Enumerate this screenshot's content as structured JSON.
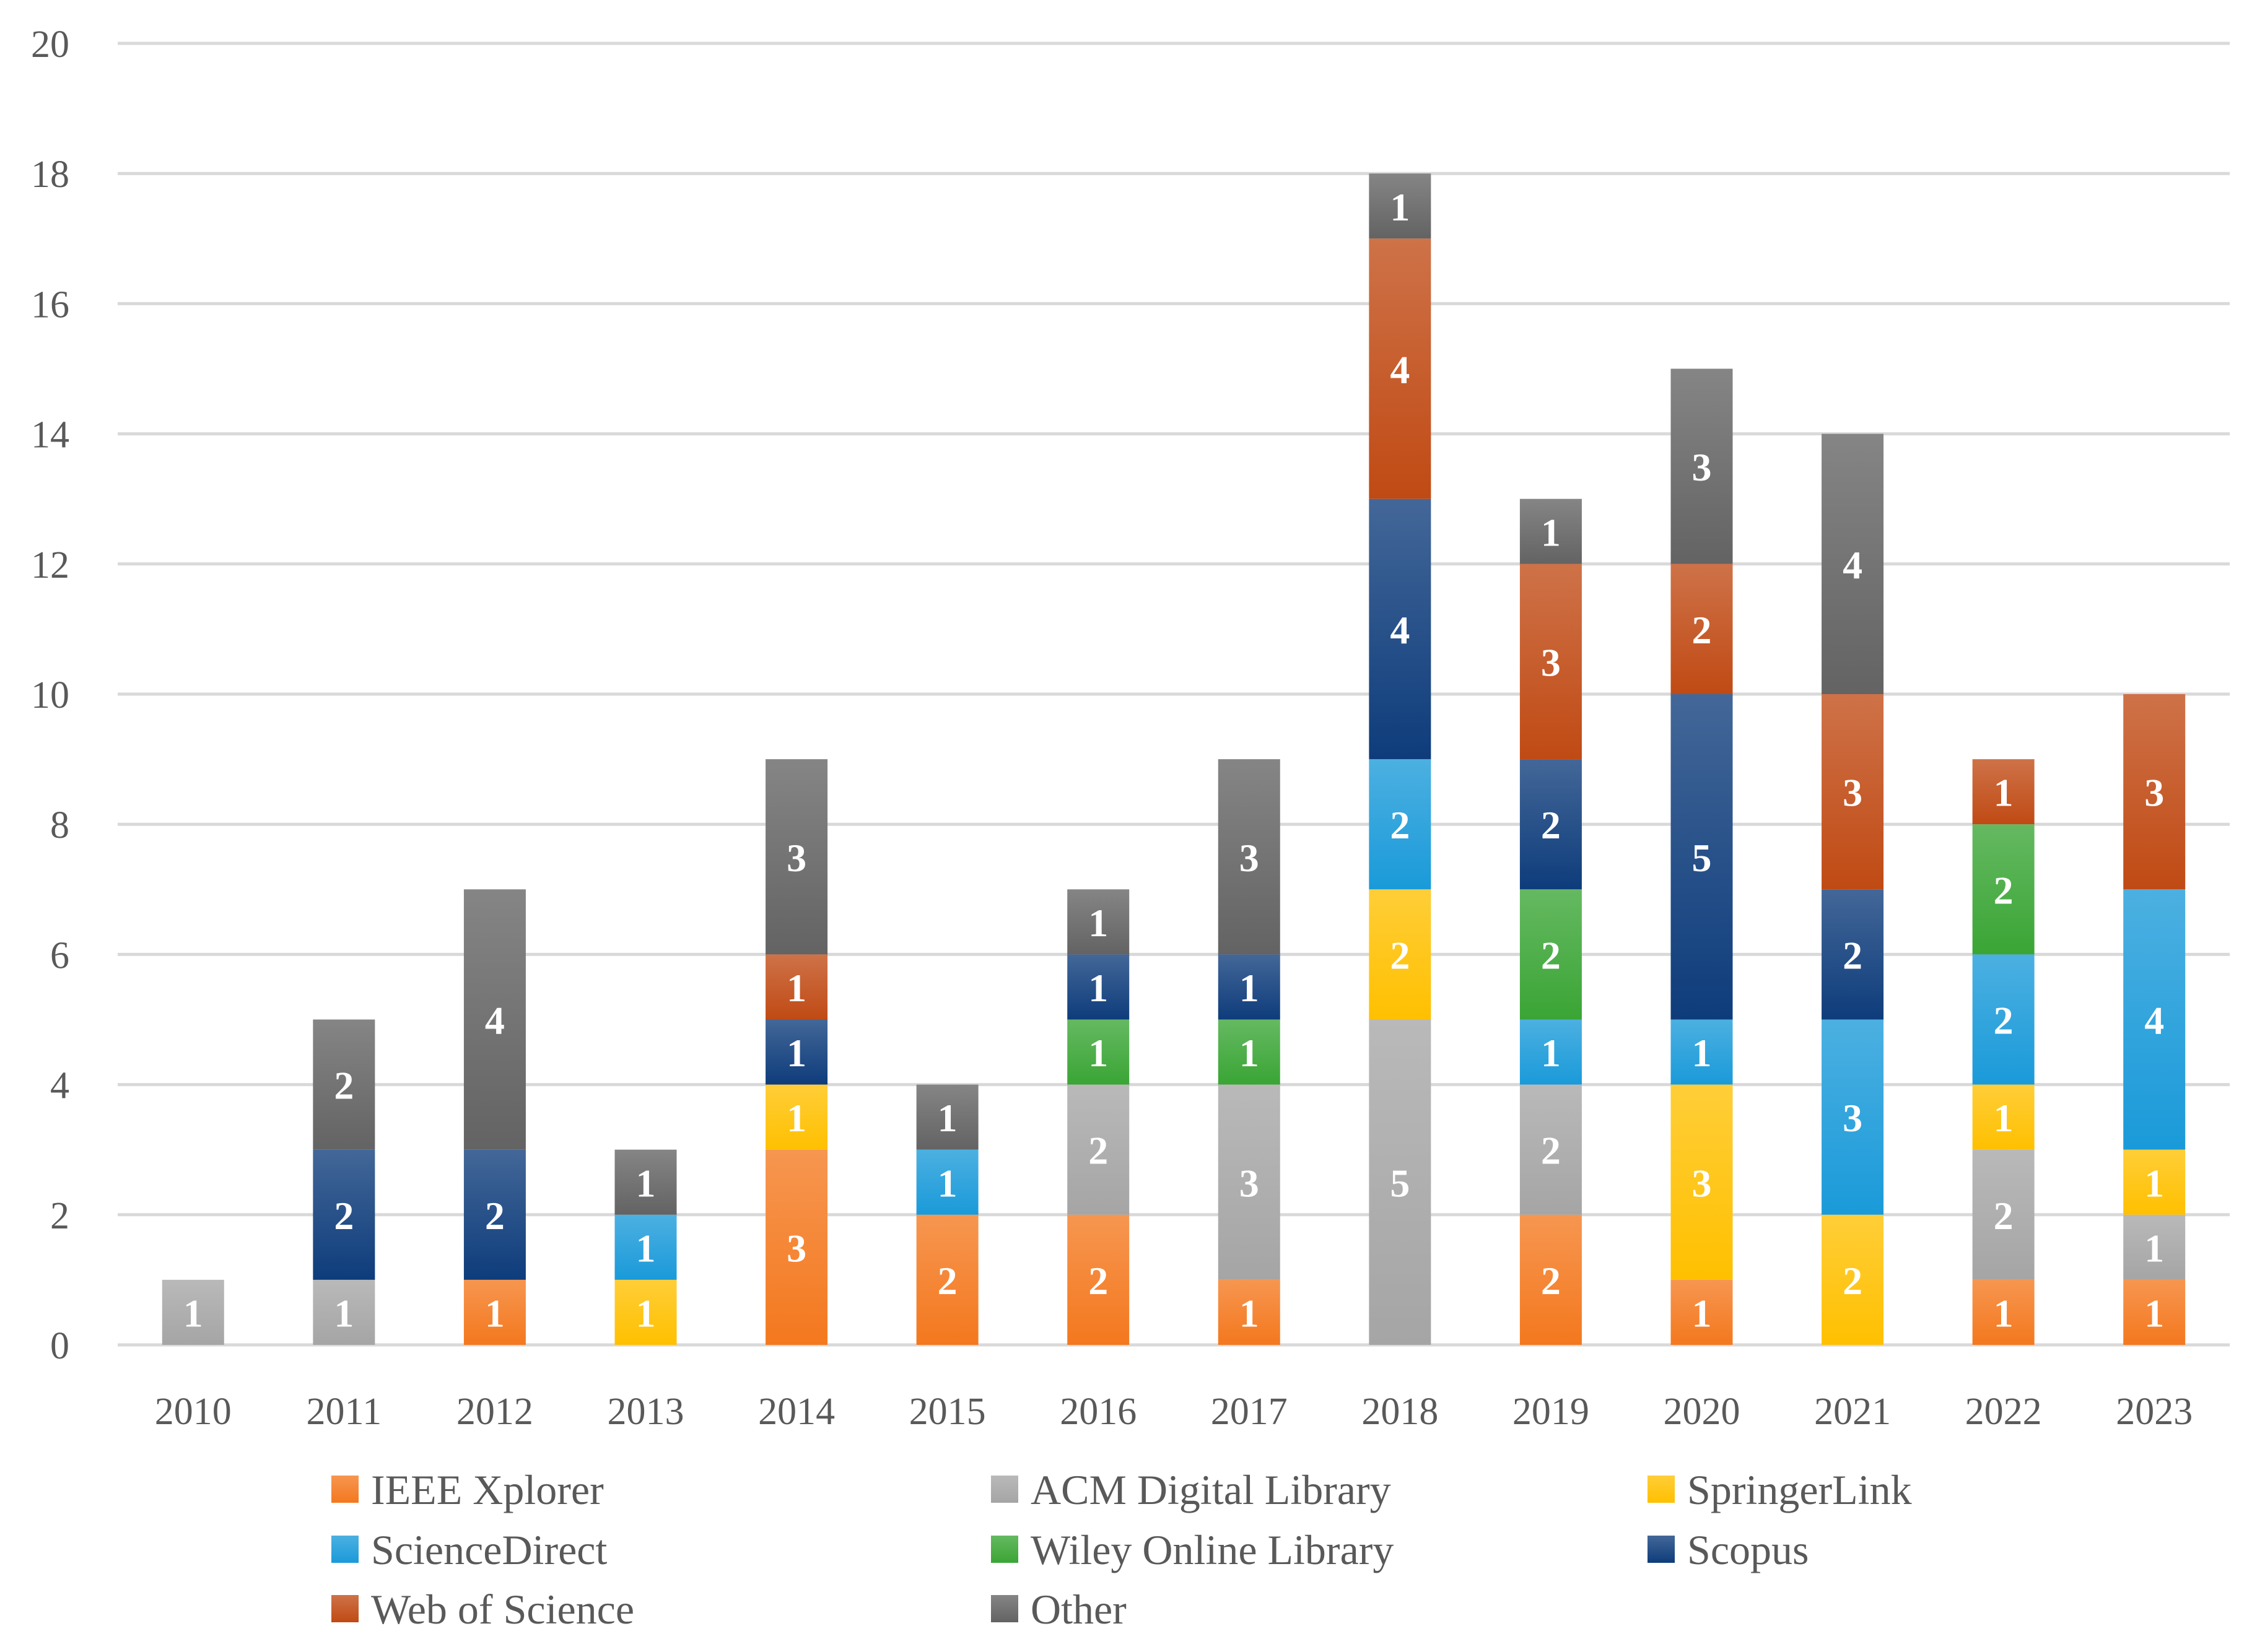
{
  "chart_data": {
    "type": "bar",
    "stacked": true,
    "title": "",
    "xlabel": "",
    "ylabel": "",
    "ylim": [
      0,
      20
    ],
    "yticks": [
      0,
      2,
      4,
      6,
      8,
      10,
      12,
      14,
      16,
      18,
      20
    ],
    "grid": true,
    "legend_position": "bottom",
    "categories": [
      "2010",
      "2011",
      "2012",
      "2013",
      "2014",
      "2015",
      "2016",
      "2017",
      "2018",
      "2019",
      "2020",
      "2021",
      "2022",
      "2023"
    ],
    "series": [
      {
        "name": "IEEE Xplorer",
        "color": "#f4781e",
        "values": [
          0,
          0,
          1,
          0,
          3,
          2,
          2,
          1,
          0,
          2,
          1,
          0,
          1,
          1
        ]
      },
      {
        "name": "ACM Digital Library",
        "color": "#a5a5a5",
        "values": [
          1,
          1,
          0,
          0,
          0,
          0,
          2,
          3,
          5,
          2,
          0,
          0,
          2,
          1
        ]
      },
      {
        "name": "SpringerLink",
        "color": "#ffc000",
        "values": [
          0,
          0,
          0,
          1,
          1,
          0,
          0,
          0,
          2,
          0,
          3,
          2,
          1,
          1
        ]
      },
      {
        "name": "ScienceDirect",
        "color": "#1a9ad9",
        "values": [
          0,
          0,
          0,
          1,
          0,
          1,
          0,
          0,
          2,
          1,
          1,
          3,
          2,
          4
        ]
      },
      {
        "name": "Wiley Online Library",
        "color": "#3aa535",
        "values": [
          0,
          0,
          0,
          0,
          0,
          0,
          1,
          1,
          0,
          2,
          0,
          0,
          2,
          0
        ]
      },
      {
        "name": "Scopus",
        "color": "#0e3c7b",
        "values": [
          0,
          2,
          2,
          0,
          1,
          0,
          1,
          1,
          4,
          2,
          5,
          2,
          0,
          0
        ]
      },
      {
        "name": "Web of Science",
        "color": "#c04a14",
        "values": [
          0,
          0,
          0,
          0,
          1,
          0,
          0,
          0,
          4,
          3,
          2,
          3,
          1,
          3
        ]
      },
      {
        "name": "Other",
        "color": "#636363",
        "values": [
          0,
          2,
          4,
          1,
          3,
          1,
          1,
          3,
          1,
          1,
          3,
          4,
          0,
          0
        ]
      }
    ]
  }
}
